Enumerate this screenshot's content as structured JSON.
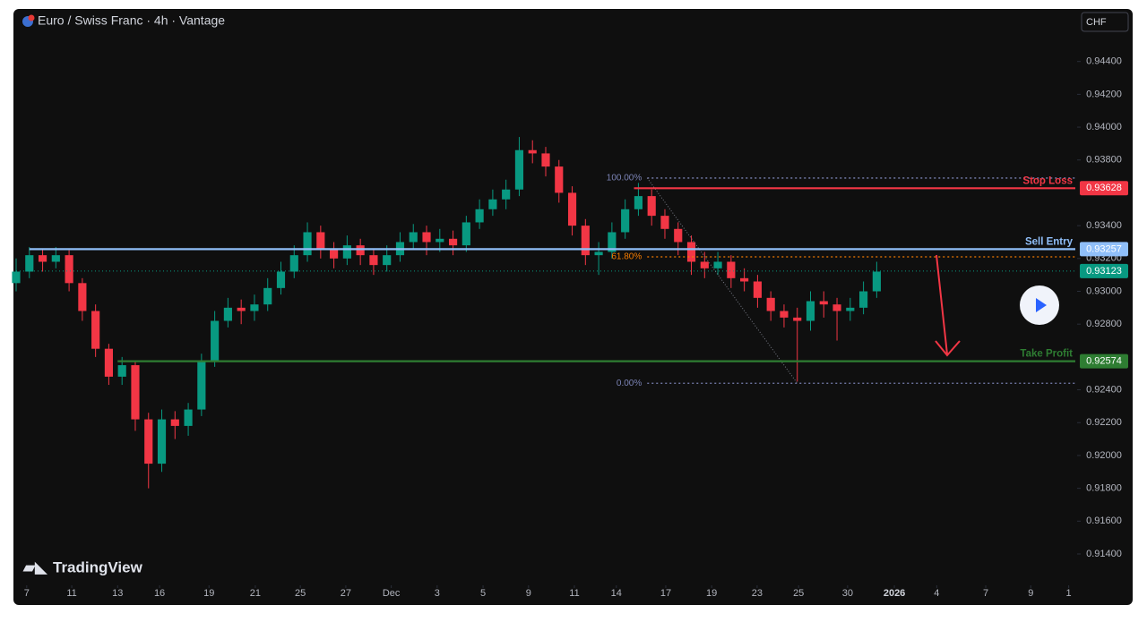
{
  "chart_data": {
    "type": "candlestick",
    "title": "Euro / Swiss Franc · 4h · Vantage",
    "currency": "CHF",
    "brand": "TradingView",
    "up_color": "#089981",
    "down_color": "#f23645",
    "xlim": [
      0,
      240
    ],
    "ylim": [
      0.9122,
      0.9472
    ],
    "xticks": [
      {
        "value": 2.4,
        "label": "7"
      },
      {
        "value": 12.6,
        "label": "11"
      },
      {
        "value": 23,
        "label": "13"
      },
      {
        "value": 32.5,
        "label": "16"
      },
      {
        "value": 43.7,
        "label": "19"
      },
      {
        "value": 54.2,
        "label": "21"
      },
      {
        "value": 64.4,
        "label": "25"
      },
      {
        "value": 74.7,
        "label": "27"
      },
      {
        "value": 85,
        "label": "Dec"
      },
      {
        "value": 95.4,
        "label": "3"
      },
      {
        "value": 105.8,
        "label": "5"
      },
      {
        "value": 116.1,
        "label": "9"
      },
      {
        "value": 126.5,
        "label": "11"
      },
      {
        "value": 136,
        "label": "14"
      },
      {
        "value": 147.2,
        "label": "17"
      },
      {
        "value": 157.6,
        "label": "19"
      },
      {
        "value": 167.9,
        "label": "23"
      },
      {
        "value": 177.3,
        "label": "25"
      },
      {
        "value": 188.4,
        "label": "30"
      },
      {
        "value": 199,
        "label": "2026"
      },
      {
        "value": 208.6,
        "label": "4"
      },
      {
        "value": 219.7,
        "label": "7"
      },
      {
        "value": 229.9,
        "label": "9"
      },
      {
        "value": 238.5,
        "label": "1"
      }
    ],
    "yticks": [
      {
        "value": 0.944,
        "label": "0.94400"
      },
      {
        "value": 0.942,
        "label": "0.94200"
      },
      {
        "value": 0.94,
        "label": "0.94000"
      },
      {
        "value": 0.938,
        "label": "0.93800"
      },
      {
        "value": 0.934,
        "label": "0.93400"
      },
      {
        "value": 0.932,
        "label": "0.93200"
      },
      {
        "value": 0.93,
        "label": "0.93000"
      },
      {
        "value": 0.928,
        "label": "0.92800"
      },
      {
        "value": 0.924,
        "label": "0.92400"
      },
      {
        "value": 0.922,
        "label": "0.92200"
      },
      {
        "value": 0.92,
        "label": "0.92000"
      },
      {
        "value": 0.918,
        "label": "0.91800"
      },
      {
        "value": 0.916,
        "label": "0.91600"
      },
      {
        "value": 0.914,
        "label": "0.91400"
      }
    ],
    "x": [
      0,
      3,
      6,
      9,
      12,
      15,
      18,
      21,
      24,
      27,
      30,
      33,
      36,
      39,
      42,
      45,
      48,
      51,
      54,
      57,
      60,
      63,
      66,
      69,
      72,
      75,
      78,
      81,
      84,
      87,
      90,
      93,
      96,
      99,
      102,
      105,
      108,
      111,
      114,
      117,
      120,
      123,
      126,
      129,
      132,
      135,
      138,
      141,
      144,
      147,
      150,
      153,
      156,
      159,
      162,
      165,
      168,
      171,
      174,
      177,
      180,
      183,
      186,
      189,
      192,
      195
    ],
    "open": [
      0.9305,
      0.9312,
      0.9322,
      0.9318,
      0.9322,
      0.9305,
      0.9288,
      0.9265,
      0.9248,
      0.9255,
      0.9222,
      0.9195,
      0.9222,
      0.9218,
      0.9228,
      0.9258,
      0.9282,
      0.929,
      0.9288,
      0.9292,
      0.9302,
      0.9312,
      0.9322,
      0.9336,
      0.9326,
      0.932,
      0.9328,
      0.9322,
      0.9316,
      0.9322,
      0.933,
      0.9336,
      0.933,
      0.9332,
      0.9328,
      0.9342,
      0.935,
      0.9356,
      0.9362,
      0.9386,
      0.9384,
      0.9376,
      0.936,
      0.934,
      0.9322,
      0.9324,
      0.9336,
      0.935,
      0.9358,
      0.9346,
      0.9338,
      0.933,
      0.9318,
      0.9314,
      0.9318,
      0.9308,
      0.9306,
      0.9296,
      0.9288,
      0.9284,
      0.9282,
      0.9294,
      0.9292,
      0.9288,
      0.929,
      0.93
    ],
    "high": [
      0.932,
      0.9327,
      0.9326,
      0.9327,
      0.9325,
      0.9308,
      0.9292,
      0.9268,
      0.926,
      0.9258,
      0.9226,
      0.9228,
      0.9227,
      0.9232,
      0.9262,
      0.9288,
      0.9296,
      0.9295,
      0.9298,
      0.9308,
      0.9318,
      0.9328,
      0.9342,
      0.934,
      0.933,
      0.9334,
      0.9332,
      0.9326,
      0.9328,
      0.9336,
      0.9341,
      0.934,
      0.9338,
      0.9337,
      0.9346,
      0.9356,
      0.9362,
      0.9368,
      0.9394,
      0.9392,
      0.9388,
      0.938,
      0.9364,
      0.9344,
      0.933,
      0.9342,
      0.9356,
      0.9366,
      0.9362,
      0.935,
      0.9342,
      0.9334,
      0.9324,
      0.9324,
      0.9322,
      0.9314,
      0.931,
      0.93,
      0.9292,
      0.929,
      0.93,
      0.93,
      0.9296,
      0.9296,
      0.9306,
      0.9318
    ],
    "low": [
      0.93,
      0.9308,
      0.9312,
      0.9314,
      0.93,
      0.9282,
      0.926,
      0.9243,
      0.9243,
      0.9215,
      0.918,
      0.919,
      0.921,
      0.9212,
      0.9224,
      0.9254,
      0.9278,
      0.928,
      0.9282,
      0.9288,
      0.9298,
      0.9308,
      0.9318,
      0.932,
      0.9314,
      0.9316,
      0.9316,
      0.931,
      0.9312,
      0.9318,
      0.9326,
      0.9322,
      0.9324,
      0.9322,
      0.9324,
      0.9338,
      0.9346,
      0.935,
      0.9358,
      0.9378,
      0.937,
      0.9354,
      0.9334,
      0.9316,
      0.931,
      0.932,
      0.9332,
      0.9346,
      0.934,
      0.9332,
      0.9322,
      0.931,
      0.9308,
      0.931,
      0.9302,
      0.93,
      0.929,
      0.9282,
      0.9278,
      0.9245,
      0.9276,
      0.9284,
      0.927,
      0.9282,
      0.9286,
      0.9296
    ],
    "close": [
      0.9312,
      0.9322,
      0.9318,
      0.9322,
      0.9305,
      0.9288,
      0.9265,
      0.9248,
      0.9255,
      0.9222,
      0.9195,
      0.9222,
      0.9218,
      0.9228,
      0.9258,
      0.9282,
      0.929,
      0.9288,
      0.9292,
      0.9302,
      0.9312,
      0.9322,
      0.9336,
      0.9326,
      0.932,
      0.9328,
      0.9322,
      0.9316,
      0.9322,
      0.933,
      0.9336,
      0.933,
      0.9332,
      0.9328,
      0.9342,
      0.935,
      0.9356,
      0.9362,
      0.9386,
      0.9384,
      0.9376,
      0.936,
      0.934,
      0.9322,
      0.9324,
      0.9336,
      0.935,
      0.9358,
      0.9346,
      0.9338,
      0.933,
      0.9318,
      0.9314,
      0.9318,
      0.9308,
      0.9306,
      0.9296,
      0.9288,
      0.9284,
      0.9282,
      0.9294,
      0.9292,
      0.9288,
      0.929,
      0.93,
      0.9312
    ],
    "current_price": {
      "value": 0.93123,
      "color": "#089981"
    },
    "levels": [
      {
        "name": "Stop Loss",
        "value": 0.93628,
        "color": "#f23645",
        "x": 140
      },
      {
        "name": "Sell Entry",
        "value": 0.93257,
        "color": "#90bff9",
        "x": 3
      },
      {
        "name": "Take Profit",
        "value": 0.92574,
        "color": "#2e7d32",
        "x": 23
      }
    ],
    "fib": {
      "x": [
        143,
        177
      ],
      "levels": [
        {
          "label": "100.00%",
          "value": 0.9369,
          "color": "#7b83b5"
        },
        {
          "label": "61.80%",
          "value": 0.9321,
          "color": "#f57c00"
        },
        {
          "label": "0.00%",
          "value": 0.9244,
          "color": "#7b83b5"
        }
      ]
    }
  }
}
